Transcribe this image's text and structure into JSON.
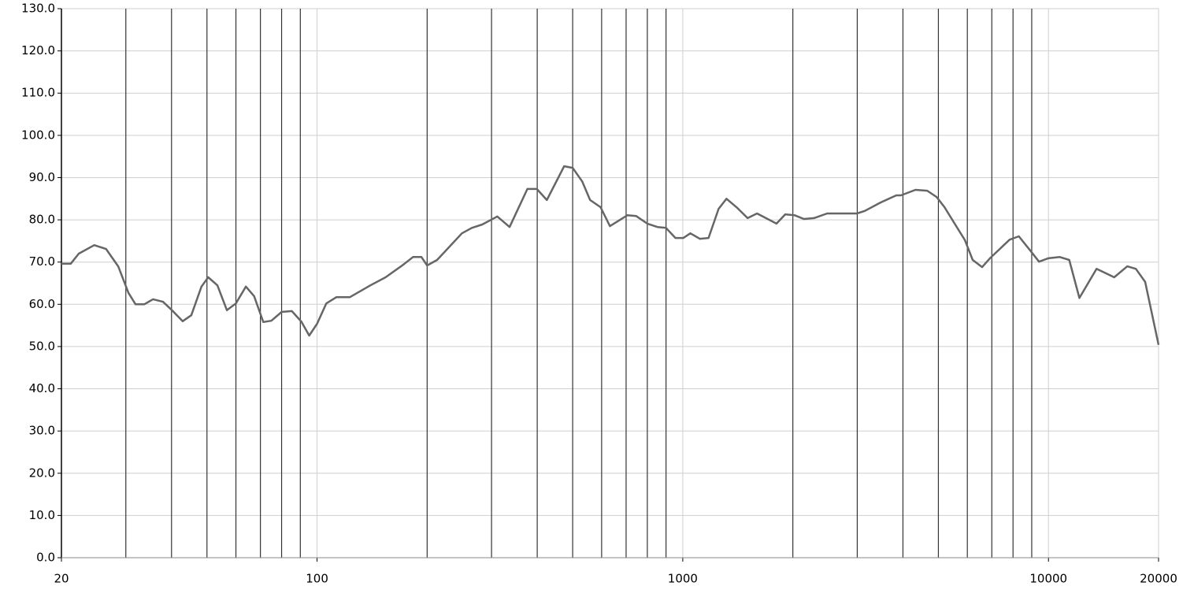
{
  "chart_data": {
    "type": "line",
    "log_x": true,
    "grid": true,
    "xlim": [
      20,
      20000
    ],
    "xticks": [
      20,
      100,
      1000,
      10000,
      20000
    ],
    "x_minor_ticks": [
      30,
      40,
      50,
      60,
      70,
      80,
      90,
      200,
      300,
      400,
      500,
      600,
      700,
      800,
      900,
      2000,
      3000,
      4000,
      5000,
      6000,
      7000,
      8000,
      9000
    ],
    "ylim": [
      0,
      130
    ],
    "yticks": [
      {
        "value": 0,
        "label": "0.0"
      },
      {
        "value": 10,
        "label": "10.0"
      },
      {
        "value": 20,
        "label": "20.0"
      },
      {
        "value": 30,
        "label": "30.0"
      },
      {
        "value": 40,
        "label": "40.0"
      },
      {
        "value": 50,
        "label": "50.0"
      },
      {
        "value": 60,
        "label": "60.0"
      },
      {
        "value": 70,
        "label": "70.0"
      },
      {
        "value": 80,
        "label": "80.0"
      },
      {
        "value": 90,
        "label": "90.0"
      },
      {
        "value": 100,
        "label": "100.0"
      },
      {
        "value": 110,
        "label": "110.0"
      },
      {
        "value": 120,
        "label": "120.0"
      },
      {
        "value": 130,
        "label": "130.0"
      }
    ],
    "series": [
      {
        "color": "#666666",
        "x": [
          20,
          21.2,
          22.3,
          24.6,
          26.5,
          28.6,
          30.5,
          31.9,
          33.7,
          35.6,
          37.9,
          40,
          42.9,
          45.3,
          48.3,
          50.4,
          53.4,
          56.7,
          60,
          63.9,
          67.3,
          71.3,
          75,
          80,
          85.3,
          90.6,
          95.2,
          100,
          106,
          113,
          123,
          140,
          154,
          171,
          183,
          193,
          200,
          213,
          249,
          265,
          283,
          311,
          336,
          376,
          399,
          425,
          474,
          500,
          531,
          558,
          596,
          632,
          706,
          746,
          800,
          853,
          900,
          955,
          1004,
          1049,
          1114,
          1176,
          1253,
          1317,
          1411,
          1504,
          1596,
          1804,
          1906,
          2021,
          2144,
          2285,
          2482,
          2993,
          3144,
          3474,
          3836,
          3950,
          4330,
          4661,
          4945,
          5196,
          5540,
          5908,
          6207,
          6585,
          6916,
          7826,
          8300,
          8923,
          9420,
          9985,
          10740,
          11400,
          12150,
          13540,
          15130,
          16430,
          17340,
          18380,
          20000
        ],
        "values": [
          69.6,
          69.6,
          72,
          74,
          73.1,
          69,
          62.7,
          60,
          60,
          61.2,
          60.6,
          58.7,
          56,
          57.4,
          64.2,
          66.4,
          64.5,
          58.6,
          60.2,
          64.2,
          61.9,
          55.8,
          56.1,
          58.2,
          58.4,
          55.9,
          52.6,
          55.4,
          60.2,
          61.7,
          61.7,
          64.5,
          66.4,
          69.2,
          71.2,
          71.2,
          69.2,
          70.5,
          76.8,
          78.1,
          78.9,
          80.8,
          78.3,
          87.3,
          87.3,
          84.7,
          92.7,
          92.3,
          89.1,
          84.7,
          83,
          78.5,
          81.1,
          80.9,
          79.1,
          78.3,
          78.1,
          75.7,
          75.7,
          76.8,
          75.5,
          75.7,
          82.6,
          85,
          82.8,
          80.4,
          81.5,
          79.1,
          81.3,
          81.1,
          80.2,
          80.4,
          81.5,
          81.5,
          82.1,
          84.1,
          85.8,
          85.8,
          87.1,
          86.9,
          85.4,
          83,
          79.1,
          75.2,
          70.5,
          68.8,
          70.9,
          75.3,
          76.1,
          72.7,
          70.1,
          70.9,
          71.2,
          70.5,
          61.5,
          68.4,
          66.4,
          69,
          68.4,
          65.3,
          50.4
        ]
      }
    ]
  }
}
